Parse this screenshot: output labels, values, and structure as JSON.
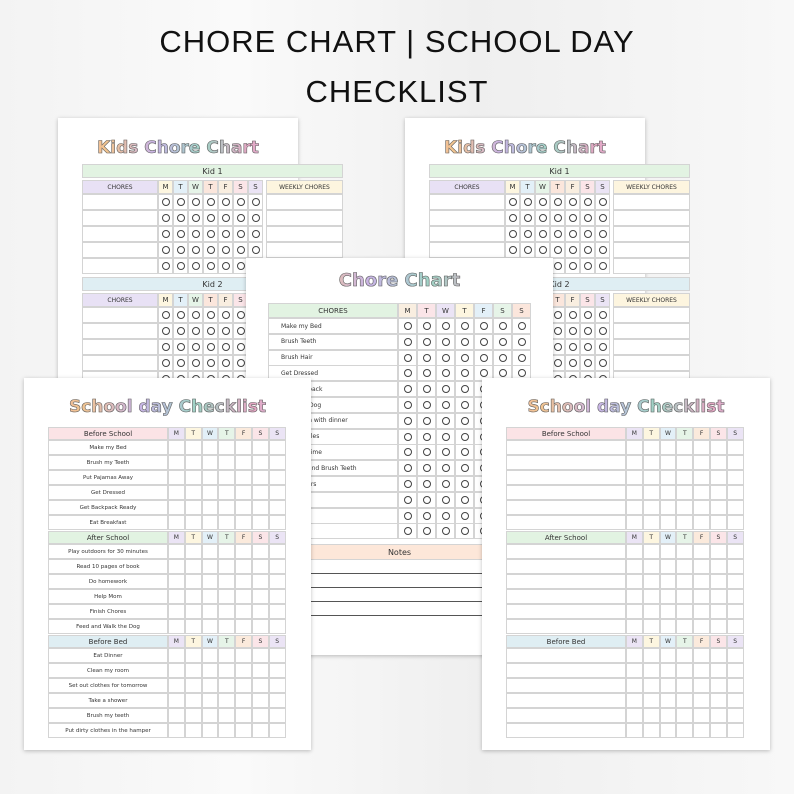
{
  "header": {
    "title_line1": "CHORE CHART | SCHOOL DAY",
    "title_line2": "CHECKLIST"
  },
  "days": [
    "M",
    "T",
    "W",
    "T",
    "F",
    "S",
    "S"
  ],
  "colors": {
    "chore_days": [
      "#f9eee0",
      "#fbe5e8",
      "#ebe4f5",
      "#fdf6e0",
      "#e3f0f8",
      "#e6f4e8",
      "#fbe6dc"
    ],
    "school_days": [
      "#ebe4f5",
      "#fdf6e0",
      "#e3f0f8",
      "#e6f4e8",
      "#fbeadc",
      "#fbe5e8",
      "#ebe4f5"
    ],
    "green": "#e2f3e2",
    "blue": "#dfeef3",
    "purple": "#e8e1f5",
    "yellow": "#fdf5df",
    "pink": "#fbe3e6",
    "peach": "#fde7d9"
  },
  "kids_chart": {
    "title": "Kids Chore Chart",
    "chores_label": "CHORES",
    "weekly_label": "WEEKLY CHORES",
    "kids": [
      "Kid 1",
      "Kid 2"
    ]
  },
  "chore_chart": {
    "title": "Chore Chart",
    "chores_label": "CHORES",
    "chores": [
      "Make my Bed",
      "Brush Teeth",
      "Brush Hair",
      "Get Dressed",
      "Get Backpack",
      "Walk the Dog",
      "Help mom with dinner",
      "Times Tables",
      "Reading Time",
      "Pajamas and Brush Teeth",
      "Say Prayers",
      "",
      "",
      ""
    ],
    "notes_label": "Notes"
  },
  "school_checklist": {
    "title": "School day Checklist",
    "sections": [
      {
        "label": "Before School",
        "items": [
          "Make my Bed",
          "Brush my Teeth",
          "Put Pajamas Away",
          "Get Dressed",
          "Get Backpack Ready",
          "Eat Breakfast"
        ]
      },
      {
        "label": "After School",
        "items": [
          "Play outdoors for 30 minutes",
          "Read 10 pages of book",
          "Do homework",
          "Help Mom",
          "Finish Chores",
          "Feed and Walk the Dog"
        ]
      },
      {
        "label": "Before Bed",
        "items": [
          "Eat Dinner",
          "Clean my room",
          "Set out clothes for tomorrow",
          "Take a shower",
          "Brush my teeth",
          "Put dirty clothes in the hamper"
        ]
      }
    ]
  },
  "school_checklist_blank": {
    "title": "School day Checklist",
    "sections": [
      "Before School",
      "After School",
      "Before Bed"
    ]
  }
}
